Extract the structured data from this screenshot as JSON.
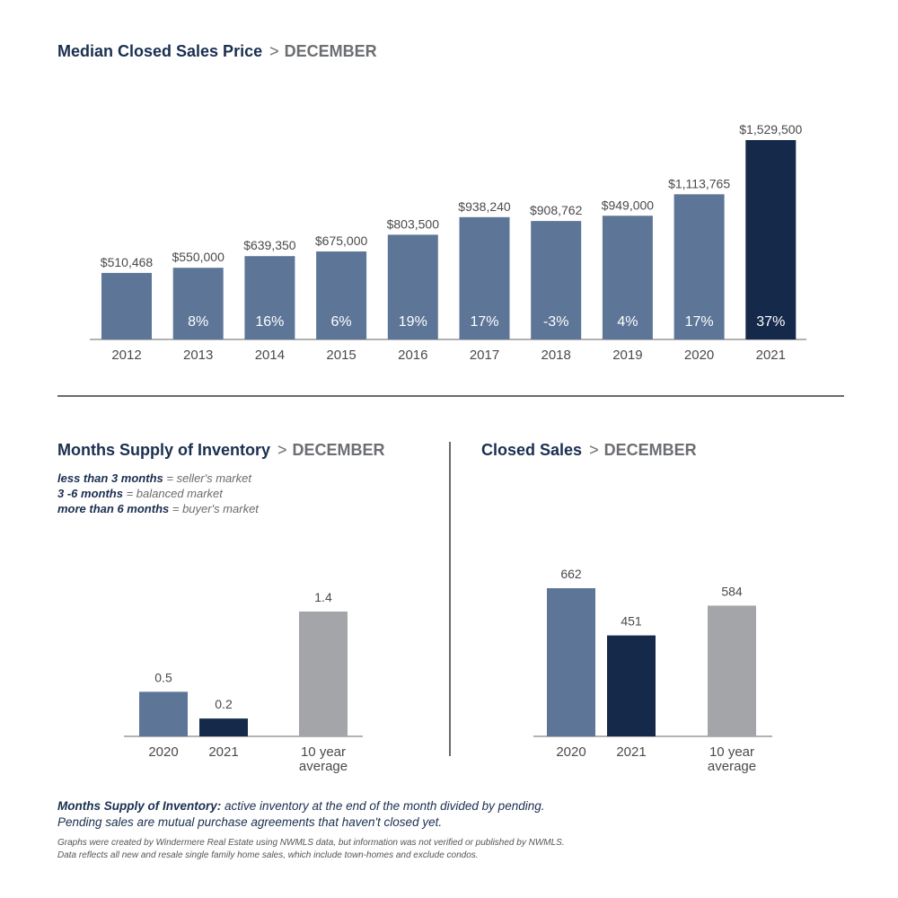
{
  "colors": {
    "navy": "#15294a",
    "steel": "#5d7698",
    "gray": "#a3a5a9",
    "axis": "#9a9a9a"
  },
  "sections": {
    "sep": ">",
    "month": "DECEMBER",
    "median_title": "Median Closed Sales Price",
    "inventory_title": "Months Supply of Inventory",
    "closed_title": "Closed Sales"
  },
  "legend": [
    {
      "term": "less than 3 months",
      "desc": " = seller's market"
    },
    {
      "term": "3 -6 months",
      "desc": " = balanced market"
    },
    {
      "term": "more than 6 months",
      "desc": " = buyer's market"
    }
  ],
  "footnote": {
    "term": "Months Supply of Inventory:",
    "line1": " active inventory at the end of the month divided by pending.",
    "line2": "Pending sales are mutual purchase agreements that haven't closed yet."
  },
  "fine_print": {
    "line1": "Graphs were created by Windermere Real Estate using NWMLS data, but information was not verified or published by NWMLS.",
    "line2": "Data reflects all new and resale single family home sales, which include town-homes and exclude condos."
  },
  "chart_data": [
    {
      "type": "bar",
      "title": "Median Closed Sales Price > DECEMBER",
      "categories": [
        "2012",
        "2013",
        "2014",
        "2015",
        "2016",
        "2017",
        "2018",
        "2019",
        "2020",
        "2021"
      ],
      "values": [
        510468,
        550000,
        639350,
        675000,
        803500,
        938240,
        908762,
        949000,
        1113765,
        1529500
      ],
      "value_labels": [
        "$510,468",
        "$550,000",
        "$639,350",
        "$675,000",
        "$803,500",
        "$938,240",
        "$908,762",
        "$949,000",
        "$1,113,765",
        "$1,529,500"
      ],
      "pct_change_labels": [
        "",
        "8%",
        "16%",
        "6%",
        "19%",
        "17%",
        "-3%",
        "4%",
        "17%",
        "37%"
      ],
      "highlight_index": 9,
      "ylim": [
        0,
        1529500
      ],
      "grid": false
    },
    {
      "type": "bar",
      "title": "Months Supply of Inventory > DECEMBER",
      "categories": [
        "2020",
        "2021",
        "10 year average"
      ],
      "category_lines": [
        [
          "2020"
        ],
        [
          "2021"
        ],
        [
          "10 year",
          "average"
        ]
      ],
      "values": [
        0.5,
        0.2,
        1.4
      ],
      "value_labels": [
        "0.5",
        "0.2",
        "1.4"
      ],
      "ylim": [
        0,
        1.4
      ],
      "grid": false
    },
    {
      "type": "bar",
      "title": "Closed Sales > DECEMBER",
      "categories": [
        "2020",
        "2021",
        "10 year average"
      ],
      "category_lines": [
        [
          "2020"
        ],
        [
          "2021"
        ],
        [
          "10 year",
          "average"
        ]
      ],
      "values": [
        662,
        451,
        584
      ],
      "value_labels": [
        "662",
        "451",
        "584"
      ],
      "ylim": [
        0,
        662
      ],
      "grid": false
    }
  ]
}
